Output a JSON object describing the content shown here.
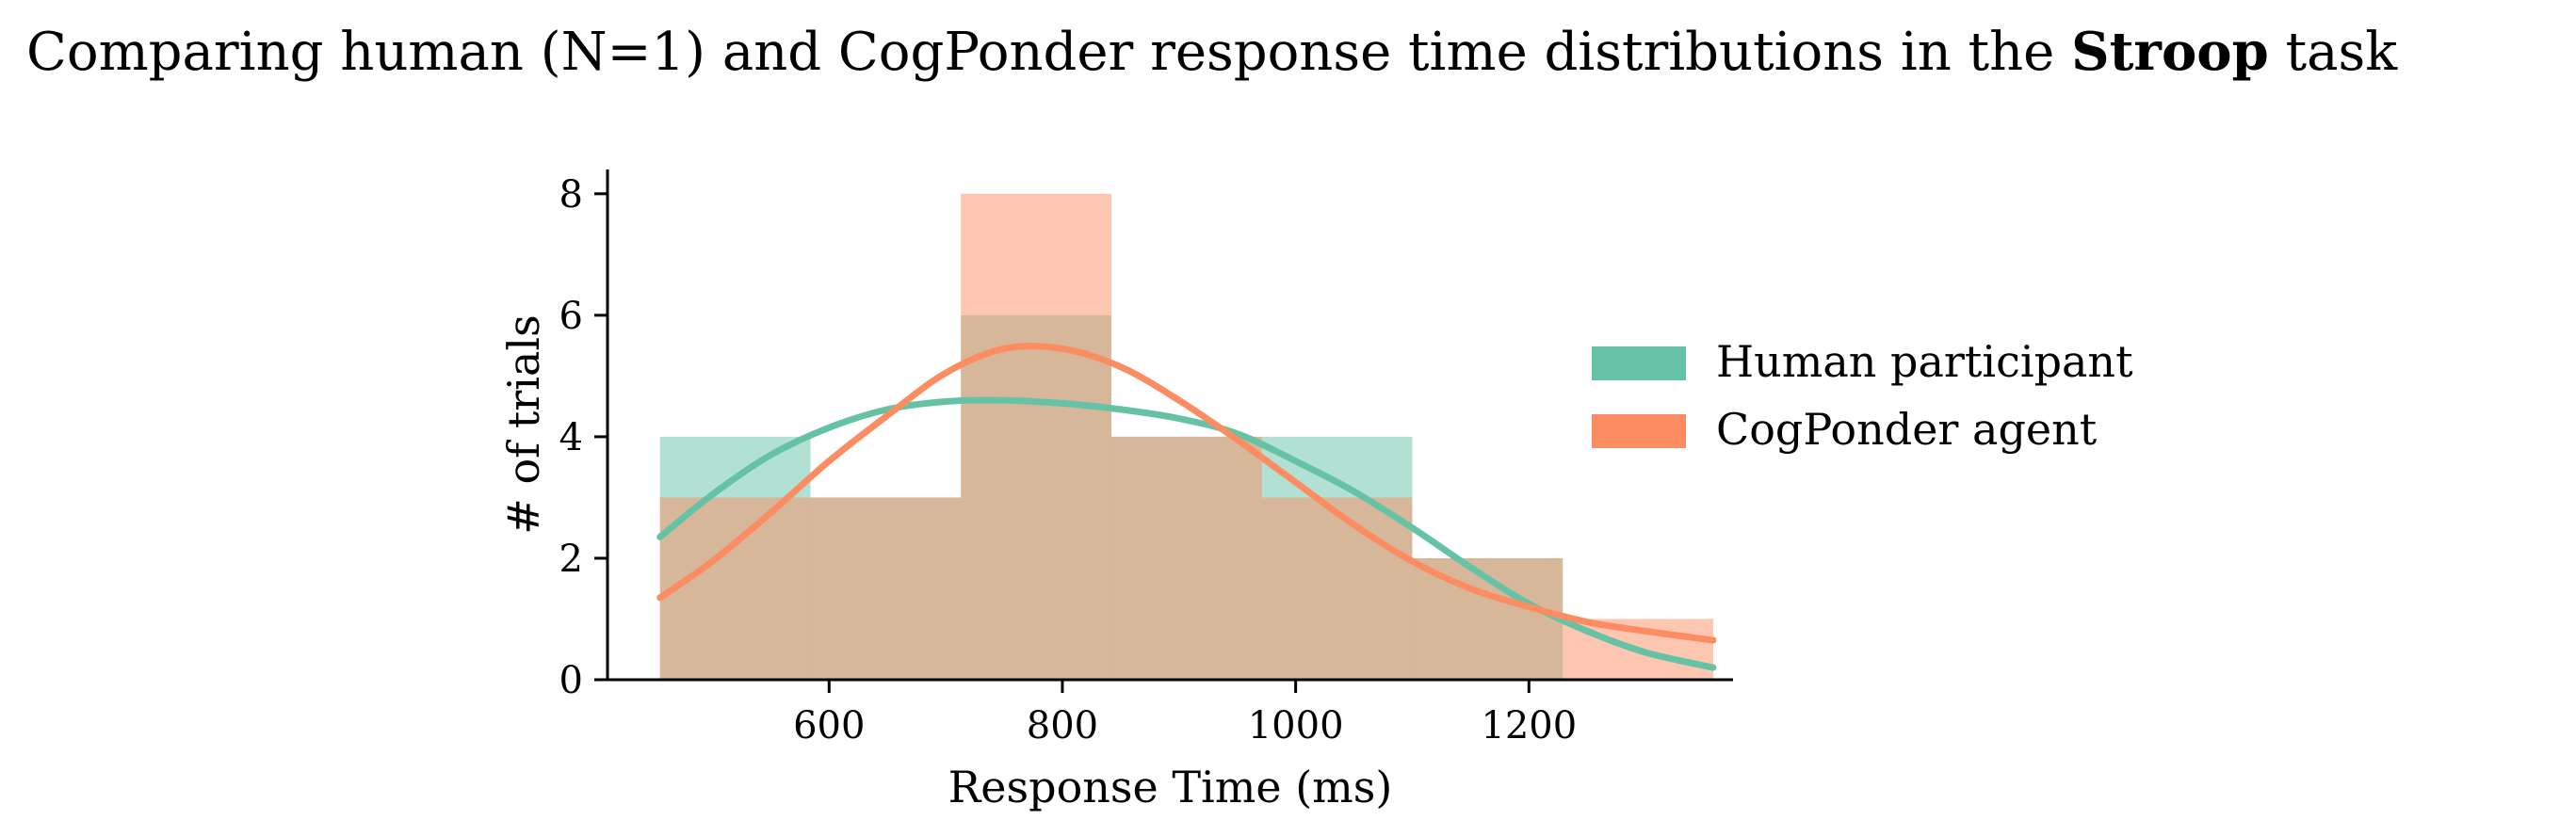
{
  "chart_data": {
    "type": "bar",
    "title": {
      "prefix": "Comparing human (N=1) and CogPonder response time distributions in the ",
      "bold": "Stroop",
      "suffix": " task"
    },
    "xlabel": "Response Time (ms)",
    "ylabel": "# of trials",
    "xlim": [
      410,
      1375
    ],
    "ylim": [
      0,
      8.4
    ],
    "xticks": [
      600,
      800,
      1000,
      1200
    ],
    "yticks": [
      0,
      2,
      4,
      6,
      8
    ],
    "bin_edges": [
      455,
      584,
      713,
      842,
      971,
      1100,
      1229,
      1358
    ],
    "legend_position": "right",
    "series": [
      {
        "name": "Human participant",
        "color": "#66c2a5",
        "counts": [
          4,
          3,
          6,
          4,
          4,
          2,
          0
        ],
        "kde_x": [
          455,
          500,
          550,
          600,
          650,
          700,
          750,
          800,
          850,
          900,
          950,
          1000,
          1050,
          1100,
          1150,
          1200,
          1250,
          1300,
          1358
        ],
        "kde_y": [
          2.35,
          3.05,
          3.7,
          4.15,
          4.45,
          4.58,
          4.6,
          4.55,
          4.45,
          4.3,
          4.05,
          3.6,
          3.1,
          2.5,
          1.85,
          1.25,
          0.8,
          0.45,
          0.2
        ]
      },
      {
        "name": "CogPonder agent",
        "color": "#fc8d62",
        "counts": [
          3,
          3,
          8,
          4,
          3,
          2,
          1
        ],
        "kde_x": [
          455,
          500,
          550,
          600,
          650,
          700,
          750,
          800,
          850,
          900,
          950,
          1000,
          1050,
          1100,
          1150,
          1200,
          1250,
          1300,
          1358
        ],
        "kde_y": [
          1.35,
          1.95,
          2.75,
          3.6,
          4.35,
          5.05,
          5.45,
          5.45,
          5.15,
          4.6,
          3.95,
          3.25,
          2.55,
          1.95,
          1.5,
          1.2,
          0.95,
          0.8,
          0.65
        ]
      }
    ]
  }
}
